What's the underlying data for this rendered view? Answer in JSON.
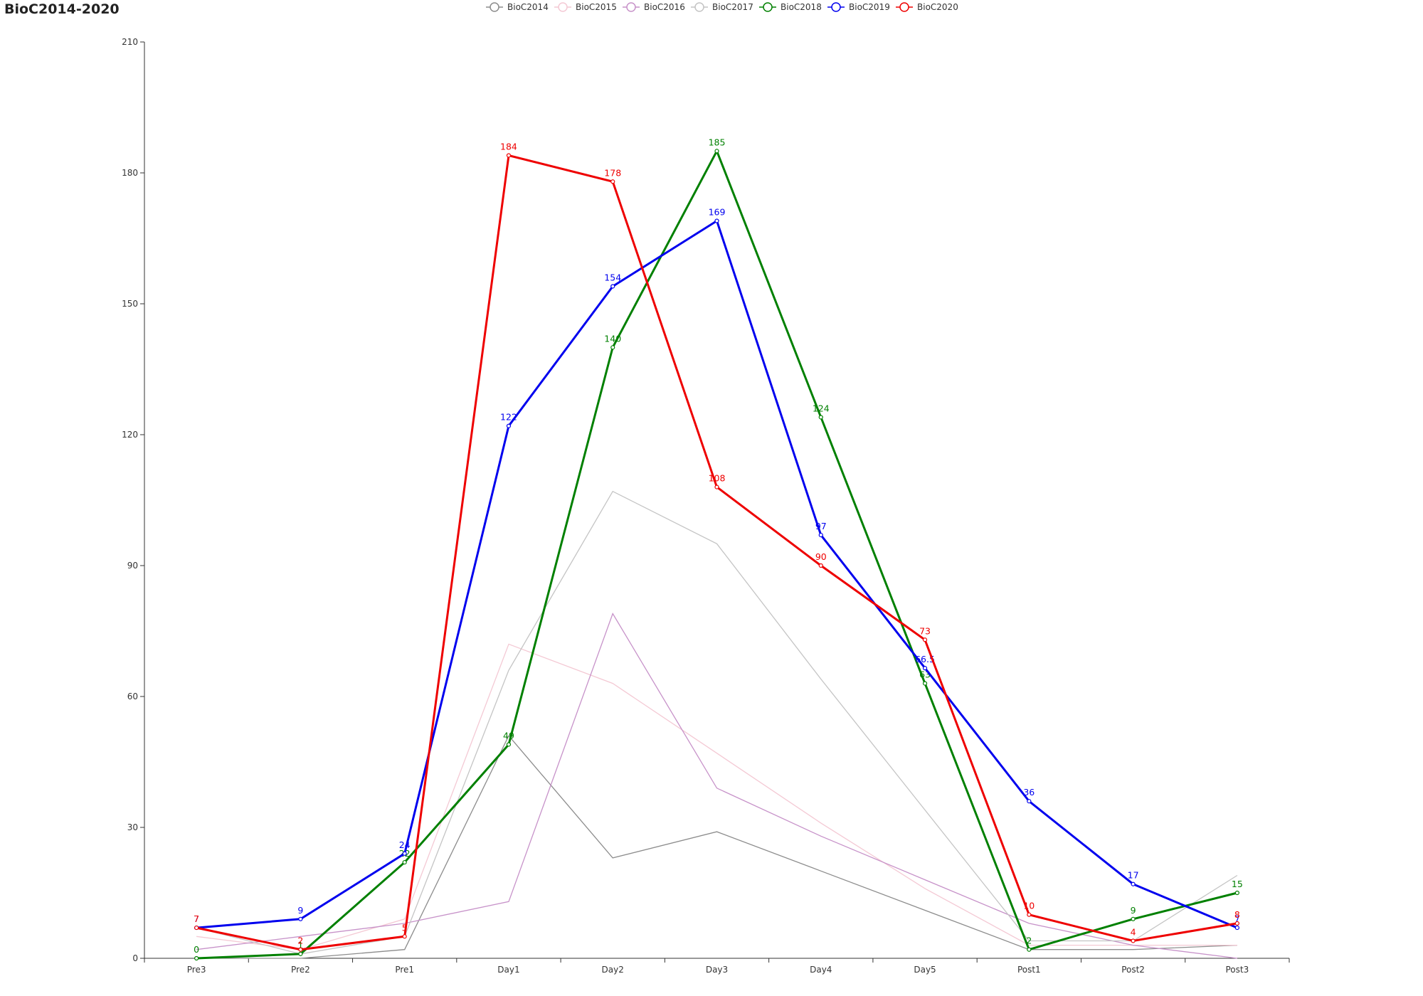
{
  "chart_data": {
    "type": "line",
    "title": "BioC2014-2020",
    "xlabel": "",
    "ylabel": "",
    "categories": [
      "Pre3",
      "Pre2",
      "Pre1",
      "Day1",
      "Day2",
      "Day3",
      "Day4",
      "Day5",
      "Post1",
      "Post2",
      "Post3"
    ],
    "ylim": [
      0,
      210
    ],
    "yticks": [
      0,
      30,
      60,
      90,
      120,
      150,
      180,
      210
    ],
    "legend_position": "top-center",
    "grid": false,
    "series": [
      {
        "name": "BioC2014",
        "color": "#8c8c8c",
        "emphasis": false,
        "show_labels": false,
        "values": [
          0,
          0,
          2,
          51,
          23,
          29,
          20,
          11,
          2,
          2,
          3
        ]
      },
      {
        "name": "BioC2015",
        "color": "#f4c9d4",
        "emphasis": false,
        "show_labels": false,
        "values": [
          5,
          2,
          9,
          72,
          63,
          47,
          31,
          16,
          3,
          3,
          3
        ]
      },
      {
        "name": "BioC2016",
        "color": "#c792c9",
        "emphasis": false,
        "show_labels": false,
        "values": [
          2,
          5,
          8,
          13,
          79,
          39,
          28,
          18,
          8,
          3,
          0
        ]
      },
      {
        "name": "BioC2017",
        "color": "#c4c4c4",
        "emphasis": false,
        "show_labels": false,
        "values": [
          7,
          1,
          5,
          66,
          107,
          95,
          64,
          34,
          4,
          4,
          19
        ]
      },
      {
        "name": "BioC2018",
        "color": "#008000",
        "emphasis": true,
        "show_labels": true,
        "values": [
          0,
          1,
          22,
          49,
          140,
          185,
          124,
          63,
          2,
          9,
          15
        ]
      },
      {
        "name": "BioC2019",
        "color": "#0000ee",
        "emphasis": true,
        "show_labels": true,
        "values": [
          7,
          9,
          24,
          122,
          154,
          169,
          97,
          66.5,
          36,
          17,
          7
        ]
      },
      {
        "name": "BioC2020",
        "color": "#ee0000",
        "emphasis": true,
        "show_labels": true,
        "values": [
          7,
          2,
          5,
          184,
          178,
          108,
          90,
          73,
          10,
          4,
          8
        ]
      }
    ]
  }
}
